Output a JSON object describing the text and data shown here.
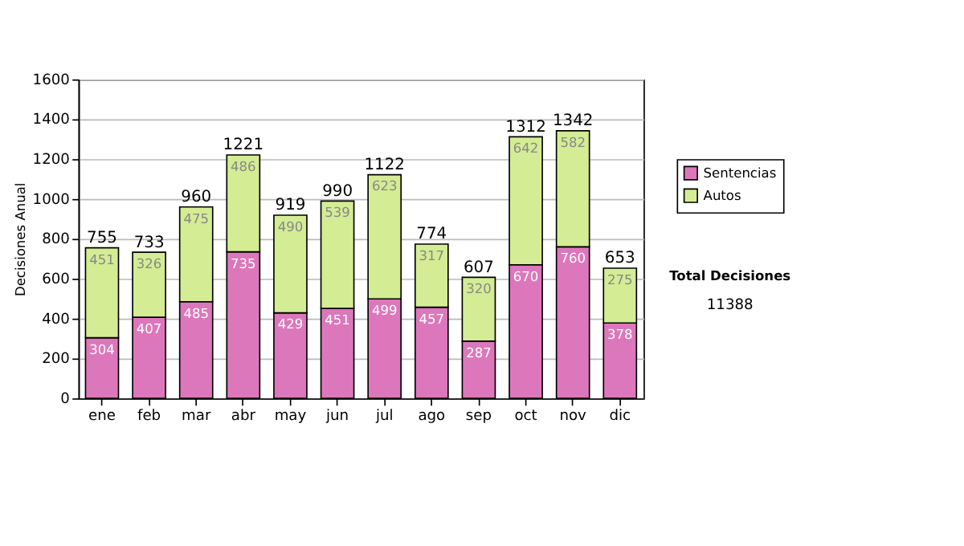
{
  "chart_data": {
    "type": "bar",
    "stacked": true,
    "ylabel": "Decisiones Anual",
    "categories": [
      "ene",
      "feb",
      "mar",
      "abr",
      "may",
      "jun",
      "jul",
      "ago",
      "sep",
      "oct",
      "nov",
      "dic"
    ],
    "series": [
      {
        "name": "Sentencias",
        "color": "#dd77bb",
        "values": [
          304,
          407,
          485,
          735,
          429,
          451,
          499,
          457,
          287,
          670,
          760,
          378
        ]
      },
      {
        "name": "Autos",
        "color": "#d4ec94",
        "values": [
          451,
          326,
          475,
          486,
          490,
          539,
          623,
          317,
          320,
          642,
          582,
          275
        ]
      }
    ],
    "totals": [
      "755",
      "733",
      "960",
      "1221",
      "919",
      "990",
      "1122",
      "774",
      "607",
      "1312",
      "1342",
      "653"
    ],
    "data_labels": true,
    "ylim": [
      0,
      1600
    ],
    "yticks": [
      0,
      200,
      400,
      600,
      800,
      1000,
      1200,
      1400,
      1600
    ],
    "grid": "y",
    "legend": "top right",
    "annotations": [
      "Total Decisiones",
      "11388"
    ]
  }
}
